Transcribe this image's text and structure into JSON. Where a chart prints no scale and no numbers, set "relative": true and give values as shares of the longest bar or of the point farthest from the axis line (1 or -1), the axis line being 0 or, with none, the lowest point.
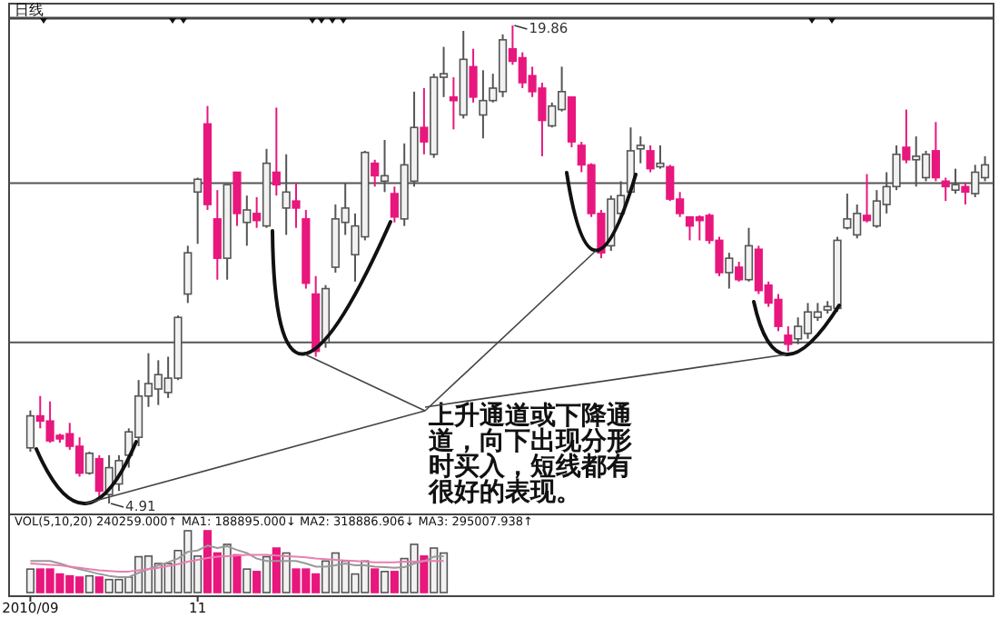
{
  "chart_data": [
    {
      "type": "candlestick",
      "title": "日线",
      "tick_labels": false,
      "categories": [
        null,
        null,
        null,
        null,
        null,
        null,
        null,
        null,
        null,
        null,
        null,
        null,
        null,
        null,
        null,
        null,
        null,
        null,
        null,
        null,
        null,
        null,
        null,
        null,
        null,
        null,
        null,
        null,
        null,
        null,
        null,
        null,
        null,
        null,
        null,
        null,
        null,
        null,
        null,
        null,
        null,
        null,
        null,
        null,
        null,
        null,
        null,
        null,
        null,
        null,
        null,
        null,
        null,
        null,
        null,
        null,
        null,
        null,
        null,
        null,
        null,
        null,
        null,
        null,
        null,
        null,
        null,
        null,
        null,
        null,
        null,
        null,
        null,
        null,
        null,
        null,
        null,
        null,
        null,
        null,
        null,
        null,
        null,
        null,
        null,
        null,
        null,
        null,
        null,
        null,
        null,
        null,
        null,
        null,
        null,
        null,
        null,
        null
      ],
      "ohlc": [
        [
          6.65,
          7.82,
          6.53,
          7.65
        ],
        [
          7.65,
          8.27,
          7.26,
          7.49
        ],
        [
          7.49,
          8.1,
          6.81,
          6.87
        ],
        [
          7.04,
          7.09,
          6.81,
          6.93
        ],
        [
          7.09,
          7.43,
          6.59,
          6.7
        ],
        [
          6.7,
          6.98,
          5.75,
          5.86
        ],
        [
          5.86,
          6.53,
          5.81,
          6.48
        ],
        [
          6.31,
          6.42,
          5.02,
          5.3
        ],
        [
          5.19,
          6.42,
          4.91,
          6.03
        ],
        [
          5.52,
          6.42,
          5.3,
          6.25
        ],
        [
          6.42,
          7.26,
          6.03,
          7.15
        ],
        [
          6.98,
          8.77,
          6.7,
          8.27
        ],
        [
          8.27,
          9.61,
          7.93,
          8.66
        ],
        [
          8.49,
          9.39,
          7.99,
          8.94
        ],
        [
          8.38,
          9.5,
          8.21,
          8.83
        ],
        [
          8.83,
          10.79,
          8.77,
          10.73
        ],
        [
          11.46,
          12.97,
          11.18,
          12.75
        ],
        [
          14.65,
          15.1,
          13.03,
          15.05
        ],
        [
          16.78,
          17.34,
          14.09,
          14.26
        ],
        [
          13.81,
          14.71,
          11.91,
          12.58
        ],
        [
          12.58,
          14.88,
          11.91,
          14.88
        ],
        [
          15.27,
          15.27,
          13.59,
          13.98
        ],
        [
          13.7,
          14.54,
          12.97,
          14.09
        ],
        [
          13.98,
          14.49,
          13.53,
          13.76
        ],
        [
          13.59,
          16.0,
          13.53,
          15.55
        ],
        [
          15.27,
          17.29,
          14.54,
          14.88
        ],
        [
          14.15,
          15.83,
          13.31,
          14.65
        ],
        [
          14.37,
          14.93,
          13.53,
          14.15
        ],
        [
          13.81,
          14.09,
          11.63,
          11.8
        ],
        [
          11.46,
          12.02,
          9.5,
          9.67
        ],
        [
          9.95,
          11.74,
          9.78,
          11.63
        ],
        [
          12.3,
          14.26,
          12.13,
          13.81
        ],
        [
          13.7,
          14.93,
          13.31,
          14.15
        ],
        [
          12.69,
          13.98,
          11.85,
          13.59
        ],
        [
          13.25,
          15.94,
          13.14,
          15.89
        ],
        [
          15.55,
          15.66,
          14.82,
          15.16
        ],
        [
          14.99,
          16.28,
          14.65,
          15.16
        ],
        [
          14.6,
          14.82,
          13.7,
          13.87
        ],
        [
          13.81,
          16.17,
          13.59,
          15.5
        ],
        [
          14.99,
          17.79,
          14.82,
          16.67
        ],
        [
          16.67,
          17.9,
          15.83,
          16.22
        ],
        [
          15.83,
          18.35,
          15.72,
          18.24
        ],
        [
          18.24,
          19.19,
          17.62,
          18.35
        ],
        [
          17.62,
          18.24,
          16.61,
          17.51
        ],
        [
          17.06,
          19.69,
          16.95,
          18.8
        ],
        [
          18.57,
          19.13,
          17.45,
          17.62
        ],
        [
          17.06,
          18.46,
          16.33,
          17.51
        ],
        [
          17.51,
          18.35,
          17.45,
          17.9
        ],
        [
          17.79,
          19.58,
          17.62,
          19.41
        ],
        [
          19.13,
          19.86,
          18.63,
          18.74
        ],
        [
          18.85,
          19.02,
          17.9,
          18.07
        ],
        [
          18.29,
          18.57,
          17.62,
          17.79
        ],
        [
          17.9,
          18.07,
          15.77,
          16.89
        ],
        [
          16.72,
          17.45,
          16.67,
          17.34
        ],
        [
          17.23,
          18.57,
          17.17,
          17.79
        ],
        [
          17.62,
          17.62,
          16.05,
          16.22
        ],
        [
          16.11,
          16.22,
          15.27,
          15.5
        ],
        [
          15.5,
          15.55,
          13.87,
          13.98
        ],
        [
          13.98,
          14.09,
          12.58,
          12.75
        ],
        [
          12.97,
          14.54,
          12.81,
          14.43
        ],
        [
          13.98,
          14.99,
          13.87,
          14.54
        ],
        [
          14.65,
          16.67,
          14.65,
          15.94
        ],
        [
          16.0,
          16.39,
          15.55,
          16.11
        ],
        [
          15.94,
          16.11,
          15.27,
          15.38
        ],
        [
          15.44,
          16.11,
          15.38,
          15.55
        ],
        [
          15.44,
          15.5,
          14.37,
          14.43
        ],
        [
          14.43,
          14.65,
          13.87,
          13.98
        ],
        [
          13.87,
          13.87,
          13.14,
          13.59
        ],
        [
          13.87,
          13.92,
          13.14,
          13.76
        ],
        [
          13.92,
          13.98,
          13.03,
          13.14
        ],
        [
          13.14,
          13.25,
          12.02,
          12.13
        ],
        [
          12.13,
          12.75,
          11.63,
          12.58
        ],
        [
          12.3,
          12.47,
          11.85,
          11.91
        ],
        [
          11.91,
          13.53,
          11.85,
          12.97
        ],
        [
          12.86,
          12.97,
          11.46,
          11.57
        ],
        [
          11.74,
          11.85,
          11.06,
          11.18
        ],
        [
          11.29,
          11.46,
          10.3,
          10.45
        ],
        [
          10.17,
          10.45,
          9.67,
          9.89
        ],
        [
          10.06,
          10.73,
          9.89,
          10.45
        ],
        [
          10.23,
          11.18,
          10.06,
          10.9
        ],
        [
          10.73,
          11.18,
          10.62,
          10.9
        ],
        [
          10.96,
          11.24,
          10.85,
          11.07
        ],
        [
          11.01,
          13.25,
          10.9,
          13.14
        ],
        [
          13.53,
          14.6,
          13.48,
          13.81
        ],
        [
          13.31,
          14.26,
          13.2,
          13.98
        ],
        [
          13.92,
          15.21,
          13.7,
          13.76
        ],
        [
          13.59,
          14.71,
          13.53,
          14.37
        ],
        [
          14.26,
          15.27,
          13.98,
          14.82
        ],
        [
          14.82,
          16.11,
          14.71,
          15.83
        ],
        [
          16.05,
          17.23,
          15.55,
          15.66
        ],
        [
          15.66,
          16.39,
          14.82,
          15.77
        ],
        [
          15.1,
          15.94,
          14.99,
          15.83
        ],
        [
          15.94,
          16.84,
          14.99,
          15.1
        ],
        [
          14.99,
          15.1,
          14.37,
          14.82
        ],
        [
          14.71,
          15.38,
          14.6,
          14.88
        ],
        [
          14.82,
          14.93,
          14.26,
          14.65
        ],
        [
          14.6,
          15.5,
          14.49,
          15.27
        ],
        [
          15.1,
          15.77,
          14.99,
          15.5
        ]
      ],
      "colors": [
        "#f2f2f2",
        "#e8177d",
        "#e8177d",
        "#e8177d",
        "#e8177d",
        "#e8177d",
        "#f2f2f2",
        "#e8177d",
        "#f2f2f2",
        "#f2f2f2",
        "#f2f2f2",
        "#f2f2f2",
        "#f2f2f2",
        "#f2f2f2",
        "#f2f2f2",
        "#f2f2f2",
        "#f2f2f2",
        "#f2f2f2",
        "#e8177d",
        "#e8177d",
        "#f2f2f2",
        "#e8177d",
        "#f2f2f2",
        "#e8177d",
        "#f2f2f2",
        "#e8177d",
        "#f2f2f2",
        "#e8177d",
        "#e8177d",
        "#e8177d",
        "#f2f2f2",
        "#f2f2f2",
        "#f2f2f2",
        "#f2f2f2",
        "#f2f2f2",
        "#e8177d",
        "#f2f2f2",
        "#e8177d",
        "#f2f2f2",
        "#f2f2f2",
        "#e8177d",
        "#f2f2f2",
        "#f2f2f2",
        "#e8177d",
        "#f2f2f2",
        "#e8177d",
        "#f2f2f2",
        "#f2f2f2",
        "#f2f2f2",
        "#e8177d",
        "#e8177d",
        "#e8177d",
        "#e8177d",
        "#f2f2f2",
        "#f2f2f2",
        "#e8177d",
        "#e8177d",
        "#e8177d",
        "#e8177d",
        "#f2f2f2",
        "#f2f2f2",
        "#f2f2f2",
        "#f2f2f2",
        "#e8177d",
        "#f2f2f2",
        "#e8177d",
        "#e8177d",
        "#e8177d",
        "#e8177d",
        "#e8177d",
        "#e8177d",
        "#f2f2f2",
        "#e8177d",
        "#f2f2f2",
        "#e8177d",
        "#e8177d",
        "#e8177d",
        "#e8177d",
        "#f2f2f2",
        "#f2f2f2",
        "#f2f2f2",
        "#f2f2f2",
        "#f2f2f2",
        "#f2f2f2",
        "#f2f2f2",
        "#e8177d",
        "#f2f2f2",
        "#f2f2f2",
        "#f2f2f2",
        "#e8177d",
        "#f2f2f2",
        "#f2f2f2",
        "#e8177d",
        "#e8177d",
        "#f2f2f2",
        "#e8177d",
        "#f2f2f2",
        "#f2f2f2"
      ],
      "ref_lines": [
        {
          "axis": "y",
          "value": 14.93,
          "color": "#555555"
        },
        {
          "axis": "y",
          "value": 9.95,
          "color": "#555555"
        }
      ],
      "annotations": [
        "19.86",
        "4.91",
        "上升通道或下降通道，向下出现分形时买入，短线都有很好的表现。"
      ]
    },
    {
      "type": "bar",
      "title": "VOL(5,10,20) 240259.000↑ MA1: 188895.000↓ MA2: 318886.906↓ MA3: 295007.938↑",
      "relative": true,
      "tick_labels": "x",
      "categories": [
        "2010/09",
        null,
        null,
        null,
        null,
        null,
        null,
        null,
        null,
        null,
        null,
        null,
        null,
        null,
        null,
        null,
        null,
        "11",
        null,
        null,
        null,
        null,
        null,
        null,
        null,
        null,
        null,
        null,
        null,
        null,
        null,
        null,
        null,
        null,
        null,
        null,
        null,
        null,
        null,
        null,
        null,
        null,
        null,
        null,
        null,
        null,
        null,
        null,
        null,
        null,
        null,
        null,
        null,
        null,
        null,
        null,
        null,
        null,
        null,
        null,
        null,
        null,
        null,
        null,
        null,
        null,
        null,
        null,
        null,
        null,
        null,
        null,
        null,
        null,
        null,
        null,
        null,
        null,
        null,
        null,
        null,
        null,
        null,
        null,
        null,
        null,
        null,
        null,
        null,
        null,
        null,
        null,
        null,
        null,
        null,
        null,
        null,
        null
      ],
      "series": [
        {
          "type": "bar",
          "colors": [
            "#f2f2f2",
            "#e8177d",
            "#e8177d",
            "#e8177d",
            "#e8177d",
            "#e8177d",
            "#f2f2f2",
            "#e8177d",
            "#f2f2f2",
            "#f2f2f2",
            "#f2f2f2",
            "#f2f2f2",
            "#f2f2f2",
            "#f2f2f2",
            "#f2f2f2",
            "#f2f2f2",
            "#f2f2f2",
            "#f2f2f2",
            "#e8177d",
            "#e8177d",
            "#f2f2f2",
            "#e8177d",
            "#f2f2f2",
            "#e8177d",
            "#f2f2f2",
            "#e8177d",
            "#f2f2f2",
            "#e8177d",
            "#e8177d",
            "#e8177d",
            "#f2f2f2",
            "#f2f2f2",
            "#f2f2f2",
            "#f2f2f2",
            "#f2f2f2",
            "#e8177d",
            "#f2f2f2",
            "#e8177d",
            "#f2f2f2",
            "#f2f2f2",
            "#e8177d",
            "#f2f2f2",
            "#f2f2f2",
            null,
            null,
            null,
            null,
            null,
            null,
            null,
            null,
            null,
            null,
            null,
            null,
            null,
            null,
            null,
            null,
            null,
            null,
            null,
            null,
            null,
            null,
            null,
            null,
            null,
            null,
            null,
            null,
            null,
            null,
            null,
            null,
            null,
            null,
            null,
            null,
            null,
            null,
            null,
            null,
            null,
            null,
            null,
            null,
            null,
            null,
            null,
            null,
            null,
            null,
            null,
            null,
            null,
            null,
            null
          ],
          "values": [
            0.38,
            0.38,
            0.38,
            0.3,
            0.27,
            0.25,
            0.27,
            0.25,
            0.21,
            0.21,
            0.25,
            0.58,
            0.59,
            0.47,
            0.47,
            0.68,
            1,
            0.59,
            1,
            0.64,
            0.78,
            0.61,
            0.38,
            0.34,
            0.58,
            0.72,
            0.64,
            0.38,
            0.38,
            0.3,
            0.51,
            0.64,
            0.51,
            0.3,
            0.51,
            0.38,
            0.34,
            0.34,
            0.55,
            0.78,
            0.59,
            0.72,
            0.64,
            null,
            null,
            null,
            null,
            null,
            null,
            null,
            null,
            null,
            null,
            null,
            null,
            null,
            null,
            null,
            null,
            null,
            null,
            null,
            null,
            null,
            null,
            null,
            null,
            null,
            null,
            null,
            null,
            null,
            null,
            null,
            null,
            null,
            null,
            null,
            null,
            null,
            null,
            null,
            null,
            null,
            null,
            null,
            null,
            null,
            null,
            null,
            null,
            null,
            null,
            null,
            null,
            null,
            null,
            null
          ]
        },
        {
          "type": "line",
          "color": "#999999",
          "values": [
            0.51,
            0.51,
            0.51,
            0.47,
            0.42,
            0.38,
            0.34,
            0.3,
            0.27,
            0.25,
            0.25,
            0.32,
            0.38,
            0.44,
            0.49,
            0.55,
            0.66,
            0.68,
            0.76,
            0.72,
            0.75,
            0.69,
            0.64,
            0.55,
            0.51,
            0.51,
            0.51,
            0.51,
            0.47,
            0.42,
            0.42,
            0.44,
            0.47,
            0.44,
            0.44,
            0.42,
            0.41,
            0.4,
            0.41,
            0.47,
            0.51,
            0.58,
            0.59,
            null,
            null,
            null,
            null,
            null,
            null,
            null,
            null,
            null,
            null,
            null,
            null,
            null,
            null,
            null,
            null,
            null,
            null,
            null,
            null,
            null,
            null,
            null,
            null,
            null,
            null,
            null,
            null,
            null,
            null,
            null,
            null,
            null,
            null,
            null,
            null,
            null,
            null,
            null,
            null,
            null,
            null,
            null,
            null,
            null,
            null,
            null,
            null,
            null,
            null,
            null,
            null,
            null,
            null,
            null
          ]
        },
        {
          "type": "line",
          "color": "#e87fb0",
          "values": [
            0.47,
            0.46,
            0.45,
            0.44,
            0.42,
            0.4,
            0.38,
            0.36,
            0.35,
            0.34,
            0.34,
            0.36,
            0.38,
            0.4,
            0.43,
            0.46,
            0.5,
            0.53,
            0.56,
            0.58,
            0.59,
            0.6,
            0.61,
            0.61,
            0.61,
            0.6,
            0.59,
            0.58,
            0.57,
            0.55,
            0.54,
            0.53,
            0.52,
            0.51,
            0.5,
            0.49,
            0.49,
            0.49,
            0.5,
            0.5,
            0.51,
            0.51,
            0.51,
            null,
            null,
            null,
            null,
            null,
            null,
            null,
            null,
            null,
            null,
            null,
            null,
            null,
            null,
            null,
            null,
            null,
            null,
            null,
            null,
            null,
            null,
            null,
            null,
            null,
            null,
            null,
            null,
            null,
            null,
            null,
            null,
            null,
            null,
            null,
            null,
            null,
            null,
            null,
            null,
            null,
            null,
            null,
            null,
            null,
            null,
            null,
            null,
            null,
            null,
            null,
            null,
            null,
            null,
            null
          ]
        }
      ]
    }
  ]
}
